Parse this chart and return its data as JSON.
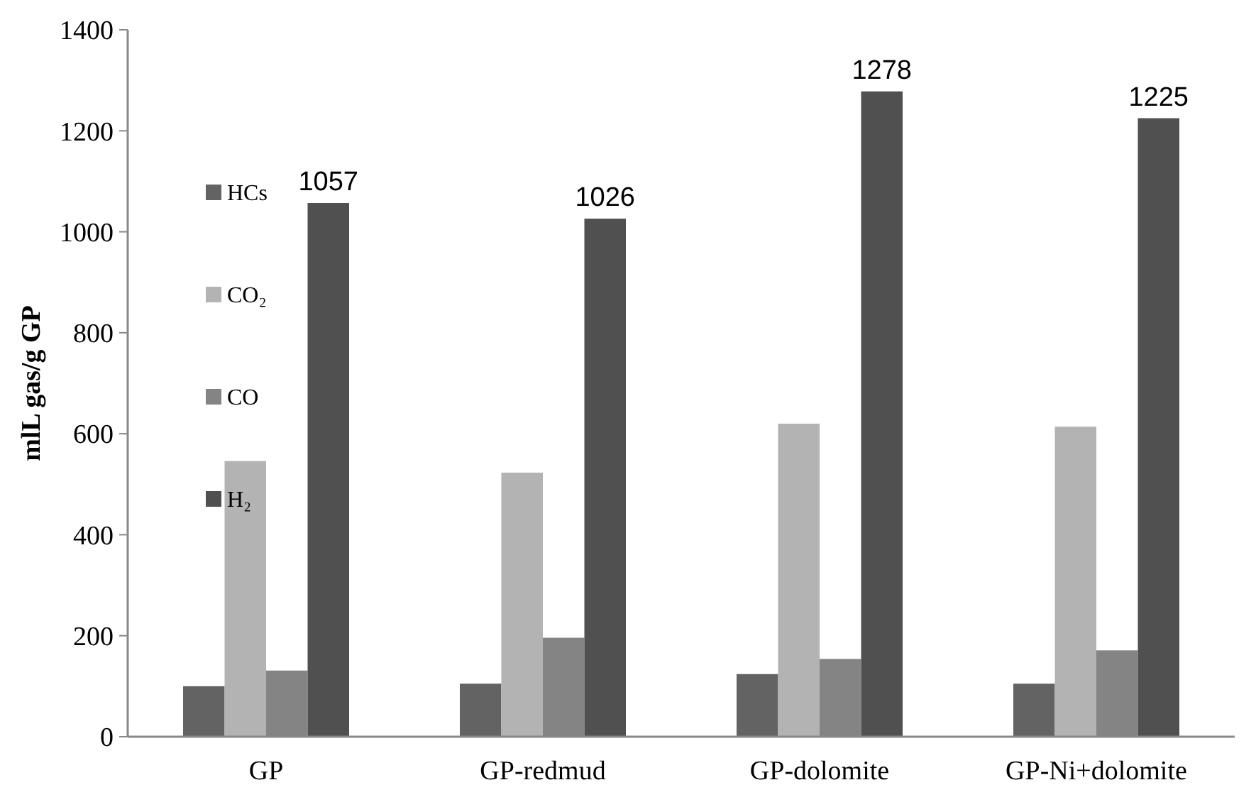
{
  "chart_data": {
    "type": "bar",
    "ylabel": "mlL gas/g GP",
    "categories": [
      "GP",
      "GP-redmud",
      "GP-dolomite",
      "GP-Ni+dolomite"
    ],
    "series": [
      {
        "name": "HCs",
        "color": "#636363",
        "values": [
          100,
          105,
          124,
          105
        ]
      },
      {
        "name": "CO₂",
        "color": "#b3b3b3",
        "values": [
          546,
          523,
          620,
          614
        ]
      },
      {
        "name": "CO",
        "color": "#848484",
        "values": [
          131,
          196,
          154,
          171
        ]
      },
      {
        "name": "H₂",
        "color": "#505050",
        "values": [
          1057,
          1026,
          1278,
          1225
        ],
        "value_labels": [
          "1057",
          "1026",
          "1278",
          "1225"
        ]
      }
    ],
    "ylim": [
      0,
      1400
    ],
    "yticks": [
      0,
      200,
      400,
      600,
      800,
      1000,
      1200,
      1400
    ],
    "grid": false,
    "legend": "top left"
  }
}
